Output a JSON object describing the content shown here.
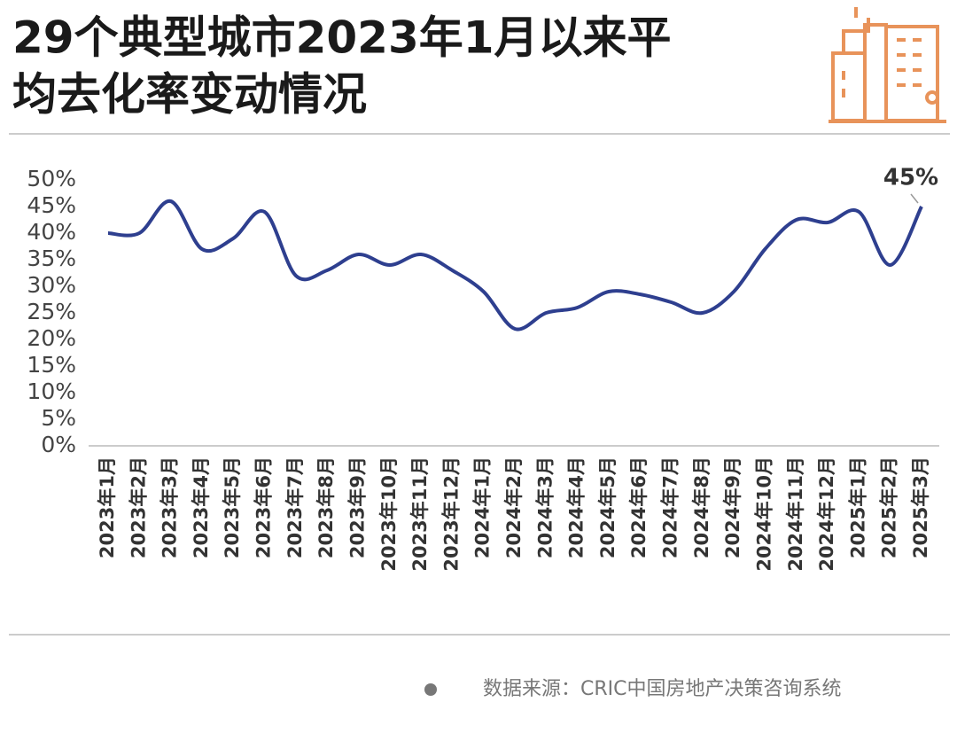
{
  "chart_data": {
    "type": "line",
    "title": [
      "29个典型城市2023年1月以来平",
      "均去化率变动情况"
    ],
    "categories": [
      "2023年1月",
      "2023年2月",
      "2023年3月",
      "2023年4月",
      "2023年5月",
      "2023年6月",
      "2023年7月",
      "2023年8月",
      "2023年9月",
      "2023年10月",
      "2023年11月",
      "2023年12月",
      "2024年1月",
      "2024年2月",
      "2024年3月",
      "2024年4月",
      "2024年5月",
      "2024年6月",
      "2024年7月",
      "2024年8月",
      "2024年9月",
      "2024年10月",
      "2024年11月",
      "2024年12月",
      "2025年1月",
      "2025年2月",
      "2025年3月"
    ],
    "series": [
      {
        "name": "平均去化率",
        "color": "#2e3f8f",
        "values": [
          40,
          40,
          46,
          37,
          39,
          44,
          32,
          33,
          36,
          34,
          36,
          33,
          29,
          22,
          25,
          26,
          29,
          28.5,
          27,
          25,
          29,
          37,
          42.5,
          42,
          44,
          34,
          45
        ],
        "value_labels": [
          null,
          null,
          null,
          null,
          null,
          null,
          null,
          null,
          null,
          null,
          null,
          null,
          null,
          null,
          null,
          null,
          null,
          null,
          null,
          null,
          null,
          null,
          null,
          null,
          null,
          null,
          "45%"
        ]
      }
    ],
    "ylim": [
      0,
      50
    ],
    "yticks": [
      {
        "value": 0,
        "label": "0%"
      },
      {
        "value": 5,
        "label": "5%"
      },
      {
        "value": 10,
        "label": "10%"
      },
      {
        "value": 15,
        "label": "15%"
      },
      {
        "value": 20,
        "label": "20%"
      },
      {
        "value": 25,
        "label": "25%"
      },
      {
        "value": 30,
        "label": "30%"
      },
      {
        "value": 35,
        "label": "35%"
      },
      {
        "value": 40,
        "label": "40%"
      },
      {
        "value": 45,
        "label": "45%"
      },
      {
        "value": 50,
        "label": "50%"
      }
    ],
    "source": "数据来源：CRIC中国房地产决策咨询系统"
  }
}
